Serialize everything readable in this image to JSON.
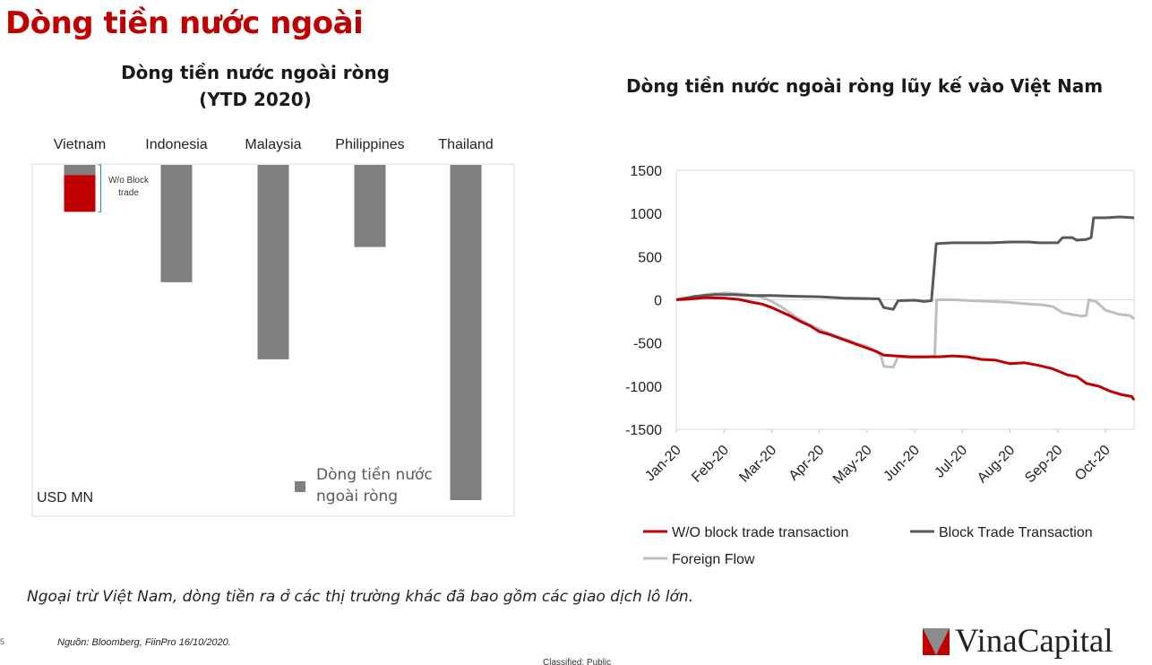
{
  "page": {
    "title": "Dòng tiền nước ngoài",
    "footnote": "Ngoại trừ Việt Nam, dòng tiền ra ở các thị trường khác đã bao gồm các giao dịch lô lớn.",
    "source": "Nguồn: Bloomberg, FiinPro 16/10/2020.",
    "page_number": "5",
    "classification": "Classified: Public",
    "logo_text": "VinaCapital"
  },
  "colors": {
    "accent_red": "#c00000",
    "bar_gray": "#7f7f7f",
    "line_dark": "#595959",
    "line_light": "#bfbfbf"
  },
  "chart_data": [
    {
      "type": "bar",
      "title_line1": "Dòng tiền nước ngoài ròng",
      "title_line2": "(YTD 2020)",
      "unit_label": "USD MN",
      "legend_label": "Dòng tiền nước ngoài ròng",
      "annotation": "W/o Block trade",
      "categories": [
        "Vietnam",
        "Indonesia",
        "Malaysia",
        "Philippines",
        "Thailand"
      ],
      "values": [
        -0.14,
        -0.35,
        -0.58,
        -0.245,
        -1.0
      ],
      "vietnam_wo_block_value": -0.11,
      "vietnam_block_value": -0.03,
      "value_scale_note": "relative to Thailand (no axis values printed)",
      "legend_position": "bottom-right"
    },
    {
      "type": "line",
      "title": "Dòng tiền nước ngoài ròng lũy kế vào Việt Nam",
      "ylim": [
        -1500,
        1500
      ],
      "yticks": [
        1500,
        1000,
        500,
        0,
        -500,
        -1000,
        -1500
      ],
      "xticks": [
        "Jan-20",
        "Feb-20",
        "Mar-20",
        "Apr-20",
        "May-20",
        "Jun-20",
        "Jul-20",
        "Aug-20",
        "Sep-20",
        "Oct-20"
      ],
      "x_range_months": [
        0,
        9.6
      ],
      "legend_position": "bottom",
      "series": [
        {
          "name": "W/O block trade transaction",
          "color": "#c00000",
          "points": [
            [
              0,
              0
            ],
            [
              0.3,
              10
            ],
            [
              0.6,
              25
            ],
            [
              1.0,
              20
            ],
            [
              1.3,
              5
            ],
            [
              1.6,
              -30
            ],
            [
              1.8,
              -50
            ],
            [
              2.0,
              -90
            ],
            [
              2.2,
              -140
            ],
            [
              2.4,
              -190
            ],
            [
              2.6,
              -250
            ],
            [
              2.8,
              -300
            ],
            [
              3.0,
              -370
            ],
            [
              3.2,
              -400
            ],
            [
              3.4,
              -440
            ],
            [
              3.6,
              -480
            ],
            [
              3.8,
              -520
            ],
            [
              4.0,
              -560
            ],
            [
              4.2,
              -600
            ],
            [
              4.35,
              -640
            ],
            [
              4.6,
              -650
            ],
            [
              4.9,
              -660
            ],
            [
              5.2,
              -660
            ],
            [
              5.5,
              -660
            ],
            [
              5.8,
              -650
            ],
            [
              6.1,
              -660
            ],
            [
              6.4,
              -690
            ],
            [
              6.7,
              -700
            ],
            [
              7.0,
              -740
            ],
            [
              7.3,
              -730
            ],
            [
              7.6,
              -760
            ],
            [
              7.9,
              -800
            ],
            [
              8.2,
              -870
            ],
            [
              8.4,
              -890
            ],
            [
              8.6,
              -970
            ],
            [
              8.85,
              -1000
            ],
            [
              9.1,
              -1060
            ],
            [
              9.35,
              -1100
            ],
            [
              9.55,
              -1120
            ],
            [
              9.6,
              -1160
            ]
          ]
        },
        {
          "name": "Block Trade Transaction",
          "color": "#595959",
          "points": [
            [
              0,
              0
            ],
            [
              0.4,
              40
            ],
            [
              0.8,
              60
            ],
            [
              1.2,
              60
            ],
            [
              1.6,
              50
            ],
            [
              2.0,
              50
            ],
            [
              2.5,
              40
            ],
            [
              3.0,
              35
            ],
            [
              3.5,
              20
            ],
            [
              4.0,
              15
            ],
            [
              4.25,
              10
            ],
            [
              4.35,
              -90
            ],
            [
              4.55,
              -110
            ],
            [
              4.65,
              -10
            ],
            [
              5.0,
              -5
            ],
            [
              5.2,
              -20
            ],
            [
              5.35,
              -10
            ],
            [
              5.45,
              650
            ],
            [
              5.8,
              660
            ],
            [
              6.2,
              660
            ],
            [
              6.6,
              660
            ],
            [
              7.0,
              670
            ],
            [
              7.4,
              670
            ],
            [
              7.6,
              660
            ],
            [
              8.0,
              660
            ],
            [
              8.1,
              720
            ],
            [
              8.3,
              720
            ],
            [
              8.4,
              690
            ],
            [
              8.6,
              700
            ],
            [
              8.7,
              720
            ],
            [
              8.75,
              950
            ],
            [
              9.0,
              950
            ],
            [
              9.3,
              960
            ],
            [
              9.6,
              950
            ]
          ]
        },
        {
          "name": "Foreign Flow",
          "color": "#bfbfbf",
          "points": [
            [
              0,
              0
            ],
            [
              0.3,
              20
            ],
            [
              0.6,
              60
            ],
            [
              1.0,
              80
            ],
            [
              1.3,
              70
            ],
            [
              1.6,
              50
            ],
            [
              1.8,
              30
            ],
            [
              2.0,
              -20
            ],
            [
              2.2,
              -80
            ],
            [
              2.4,
              -160
            ],
            [
              2.6,
              -230
            ],
            [
              2.8,
              -290
            ],
            [
              3.0,
              -340
            ],
            [
              3.2,
              -390
            ],
            [
              3.4,
              -430
            ],
            [
              3.6,
              -470
            ],
            [
              3.8,
              -510
            ],
            [
              4.0,
              -540
            ],
            [
              4.2,
              -600
            ],
            [
              4.3,
              -660
            ],
            [
              4.35,
              -770
            ],
            [
              4.55,
              -780
            ],
            [
              4.65,
              -660
            ],
            [
              5.0,
              -670
            ],
            [
              5.3,
              -660
            ],
            [
              5.42,
              -650
            ],
            [
              5.46,
              0
            ],
            [
              5.8,
              0
            ],
            [
              6.2,
              -10
            ],
            [
              6.6,
              -20
            ],
            [
              7.0,
              -30
            ],
            [
              7.4,
              -50
            ],
            [
              7.7,
              -60
            ],
            [
              7.9,
              -80
            ],
            [
              8.1,
              -150
            ],
            [
              8.3,
              -170
            ],
            [
              8.5,
              -190
            ],
            [
              8.6,
              -180
            ],
            [
              8.65,
              0
            ],
            [
              8.8,
              -20
            ],
            [
              9.0,
              -120
            ],
            [
              9.3,
              -170
            ],
            [
              9.5,
              -180
            ],
            [
              9.6,
              -220
            ]
          ]
        }
      ]
    }
  ]
}
